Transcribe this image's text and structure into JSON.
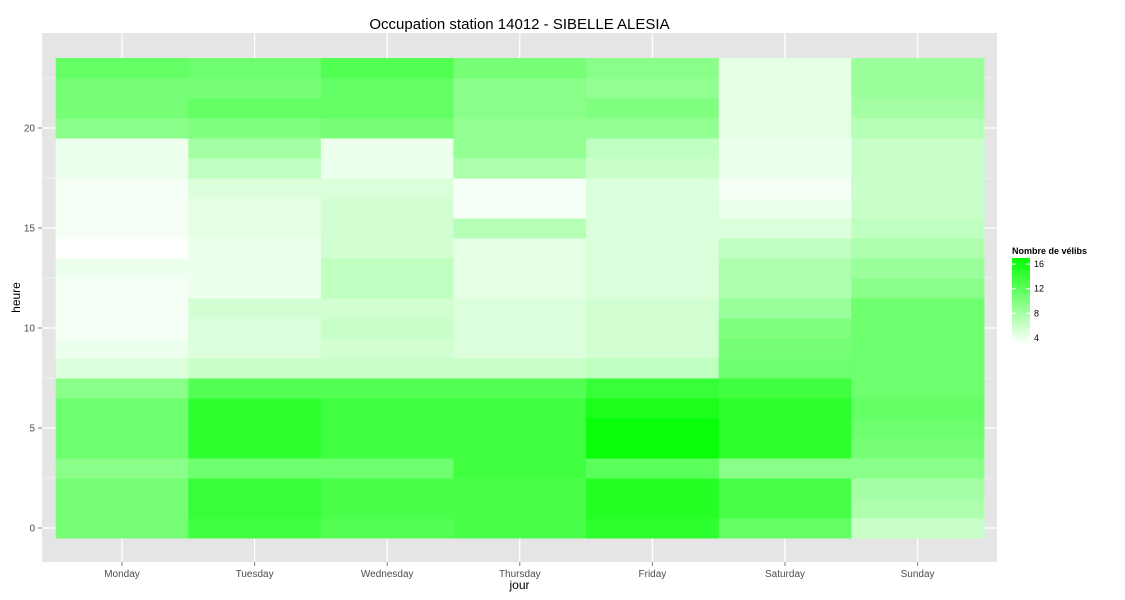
{
  "chart_data": {
    "type": "heatmap",
    "title": "Occupation station 14012 - SIBELLE ALESIA",
    "xlabel": "jour",
    "ylabel": "heure",
    "x_categories": [
      "Monday",
      "Tuesday",
      "Wednesday",
      "Thursday",
      "Friday",
      "Saturday",
      "Sunday"
    ],
    "y_range": [
      -1,
      24
    ],
    "y_ticks": [
      0,
      5,
      10,
      15,
      20
    ],
    "hours": [
      0,
      1,
      2,
      3,
      4,
      5,
      6,
      7,
      8,
      9,
      10,
      11,
      12,
      13,
      14,
      15,
      16,
      17,
      18,
      19,
      20,
      21,
      22,
      23
    ],
    "grid": true,
    "color_low": "#ffffff",
    "color_high": "#00ff00",
    "value_range": [
      3,
      17
    ],
    "values_by_day": [
      [
        10.5,
        10.5,
        10.5,
        9.5,
        11,
        11,
        11,
        9.5,
        5,
        4,
        3.5,
        3.5,
        3.5,
        4,
        3,
        3.5,
        3.5,
        3.5,
        4,
        4,
        9.5,
        10.5,
        10.5,
        11.5
      ],
      [
        13.5,
        14,
        14,
        11,
        14.5,
        14.5,
        14.5,
        12.5,
        6,
        5,
        5,
        5.5,
        4,
        4,
        4,
        4.5,
        4.5,
        5,
        6.5,
        8,
        10,
        11.5,
        10.5,
        11
      ],
      [
        12.5,
        13,
        13,
        11,
        13.5,
        13.5,
        13.5,
        12.5,
        6,
        5.5,
        6,
        5.5,
        6.5,
        6.5,
        5.5,
        5.5,
        5.5,
        5,
        4,
        4,
        10.5,
        11.5,
        11.5,
        12.5
      ],
      [
        13,
        13,
        13,
        13.5,
        13.5,
        13.5,
        13.5,
        12.5,
        6,
        5,
        5,
        5,
        4.5,
        4.5,
        4.5,
        7,
        3.5,
        3.5,
        7.5,
        9,
        9,
        9.5,
        9.5,
        10.5
      ],
      [
        14.5,
        15,
        15,
        12,
        16.5,
        16.5,
        15.5,
        14,
        6.5,
        5.5,
        5.5,
        5.5,
        5,
        5,
        5,
        5,
        5,
        5,
        6,
        6.5,
        9,
        10,
        9,
        9.5
      ],
      [
        11.5,
        13,
        13,
        9.5,
        14.5,
        14.5,
        14.5,
        13.5,
        11,
        10.5,
        10,
        8.5,
        7.5,
        7.5,
        6.5,
        5,
        4,
        3.5,
        4,
        4,
        4.5,
        4.5,
        4.5,
        4.5
      ],
      [
        6,
        7.5,
        8,
        9.5,
        10.5,
        11,
        11.5,
        11,
        11,
        11,
        11,
        11,
        9.5,
        8.5,
        7.5,
        6.5,
        6,
        6,
        6,
        6,
        7,
        8,
        8.5,
        8.5
      ]
    ],
    "legend": {
      "title": "Nombre de vélibs",
      "position": "right",
      "breaks": [
        4,
        8,
        12,
        16
      ]
    }
  }
}
